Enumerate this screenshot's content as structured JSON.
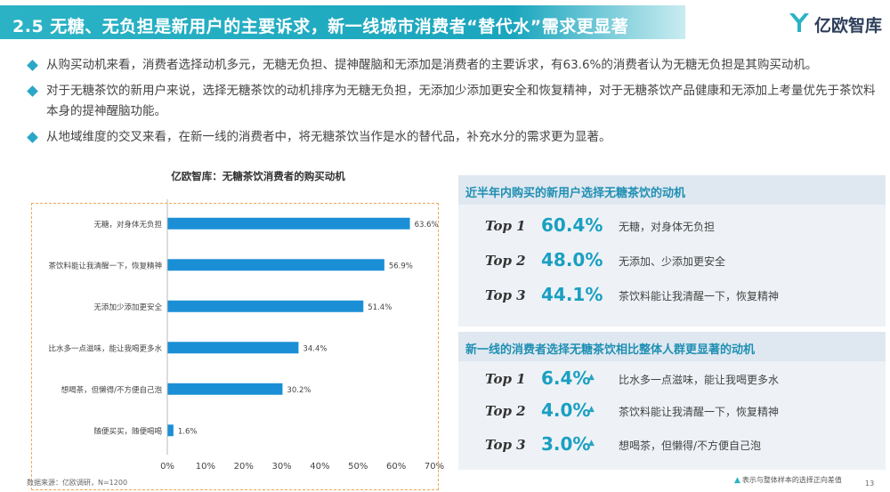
{
  "header": {
    "title": "2.5 无糖、无负担是新用户的主要诉求，新一线城市消费者“替代水”需求更显著",
    "brand": "亿欧智库"
  },
  "bullets": [
    "从购买动机来看，消费者选择动机多元，无糖无负担、提神醒脑和无添加是消费者的主要诉求，有63.6%的消费者认为无糖无负担是其购买动机。",
    "对于无糖茶饮的新用户来说，选择无糖茶饮的动机排序为无糖无负担，无添加少添加更安全和恢复精神，对于无糖茶饮产品健康和无添加上考量优先于茶饮料本身的提神醒脑功能。",
    "从地域维度的交叉来看，在新一线的消费者中，将无糖茶饮当作是水的替代品，补充水分的需求更为显著。"
  ],
  "chart_data": {
    "type": "bar",
    "orientation": "horizontal",
    "title": "亿欧智库：无糖茶饮消费者的购买动机",
    "categories": [
      "无糖，对身体无负担",
      "茶饮料能让我清醒一下，恢复精神",
      "无添加少添加更安全",
      "比水多一点滋味，能让我喝更多水",
      "想喝茶，但懒得/不方便自己泡",
      "随便买买，随便喝喝"
    ],
    "values": [
      63.6,
      56.9,
      51.4,
      34.4,
      30.2,
      1.6
    ],
    "value_labels": [
      "63.6%",
      "56.9%",
      "51.4%",
      "34.4%",
      "30.2%",
      "1.6%"
    ],
    "xlim": [
      0,
      70
    ],
    "xticks": [
      "0%",
      "10%",
      "20%",
      "30%",
      "40%",
      "50%",
      "60%",
      "70%"
    ],
    "grid": false,
    "color": "#1a8fd6"
  },
  "source": "数据来源：亿欧调研，N=1200",
  "panel1": {
    "title": "近半年内购买的新用户选择无糖茶饮的动机",
    "rows": [
      {
        "rank": "Top 1",
        "pct": "60.4%",
        "desc": "无糖，对身体无负担",
        "marked": false
      },
      {
        "rank": "Top 2",
        "pct": "48.0%",
        "desc": "无添加、少添加更安全",
        "marked": false
      },
      {
        "rank": "Top 3",
        "pct": "44.1%",
        "desc": "茶饮料能让我清醒一下，恢复精神",
        "marked": false
      }
    ]
  },
  "panel2": {
    "title": "新一线的消费者选择无糖茶饮相比整体人群更显著的动机",
    "rows": [
      {
        "rank": "Top 1",
        "pct": "6.4%",
        "desc": "比水多一点滋味，能让我喝更多水",
        "marked": true
      },
      {
        "rank": "Top 2",
        "pct": "4.0%",
        "desc": "茶饮料能让我清醒一下，恢复精神",
        "marked": true
      },
      {
        "rank": "Top 3",
        "pct": "3.0%",
        "desc": "想喝茶，但懒得/不方便自己泡",
        "marked": true
      }
    ]
  },
  "legend_note": "表示与整体样本的选择正向差值",
  "legend_marker": "▲",
  "page_number": "13",
  "colors": {
    "accent": "#2bb3c5",
    "bar": "#1a8fd6",
    "pct_text": "#1a9fc2",
    "highlight_border": "#f0a85a"
  }
}
